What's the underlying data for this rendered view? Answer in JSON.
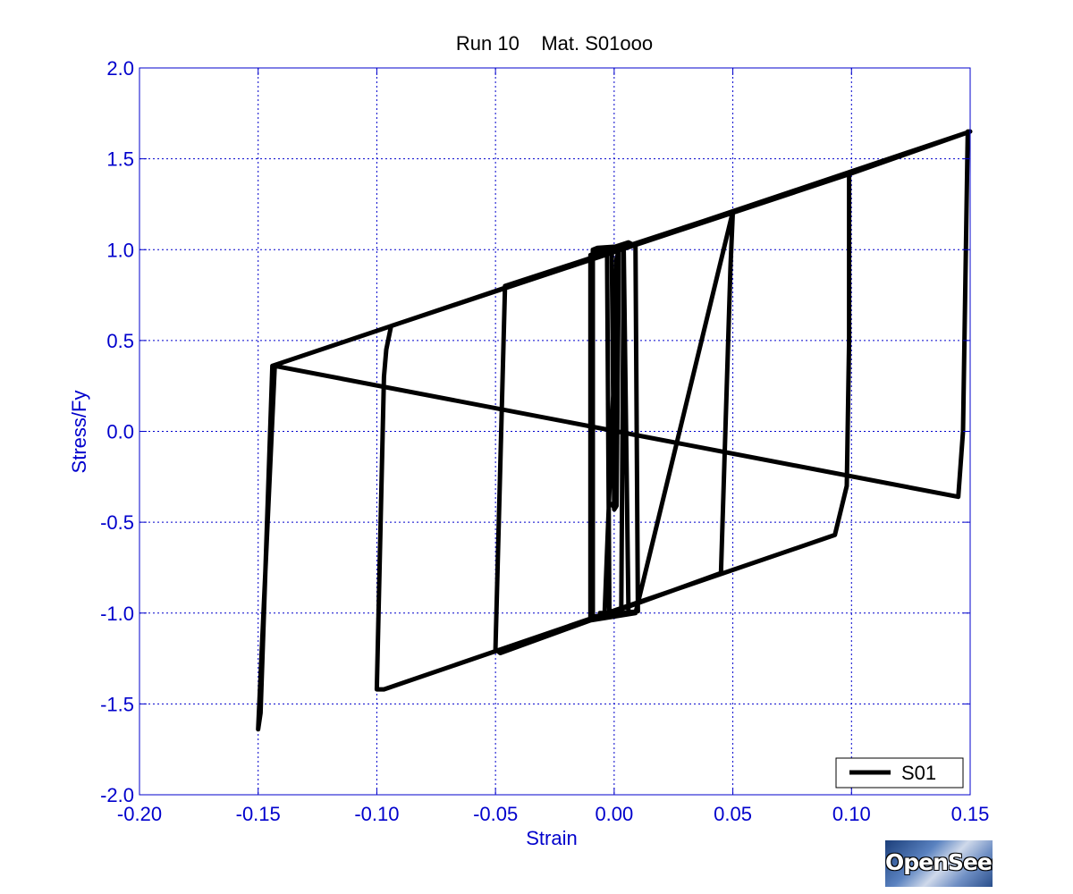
{
  "chart_data": {
    "type": "line",
    "title": "Run 10    Mat. S01ooo",
    "xlabel": "Strain",
    "ylabel": "Stress/Fy",
    "xlim": [
      -0.2,
      0.15
    ],
    "ylim": [
      -2.0,
      2.0
    ],
    "xticks": [
      -0.2,
      -0.15,
      -0.1,
      -0.05,
      0.0,
      0.05,
      0.1,
      0.15
    ],
    "xtick_labels": [
      "-0.20",
      "-0.15",
      "-0.10",
      "-0.05",
      "0.00",
      "0.05",
      "0.10",
      "0.15"
    ],
    "yticks": [
      2.0,
      1.5,
      1.0,
      0.5,
      0.0,
      -0.5,
      -1.0,
      -1.5,
      -2.0
    ],
    "ytick_labels": [
      "2.0",
      "1.5",
      "1.0",
      "0.5",
      "0.0",
      "-0.5",
      "-1.0",
      "-1.5",
      "-2.0"
    ],
    "grid": true,
    "legend_position": "bottom-right",
    "colors": {
      "axis": "#0000cc",
      "grid": "#0000cc",
      "line": "#000000",
      "title": "#000000"
    },
    "series": [
      {
        "name": "S01",
        "x": [
          -0.001,
          0.0,
          0.001,
          0.002,
          0.001,
          0.0,
          -0.001,
          -0.003,
          -0.002,
          0.003,
          0.004,
          0.002,
          -0.004,
          -0.006,
          -0.005,
          0.006,
          0.006,
          0.004,
          -0.007,
          -0.009,
          -0.009,
          0.01,
          0.009,
          0.006,
          -0.008,
          -0.01,
          -0.01,
          0.009,
          0.05,
          0.049,
          0.045,
          -0.048,
          -0.05,
          -0.046,
          0.05,
          0.1,
          0.099,
          0.099,
          0.098,
          0.093,
          -0.097,
          -0.1,
          -0.097,
          -0.096,
          -0.094,
          0.1,
          0.15,
          0.149,
          0.147,
          0.145,
          -0.143,
          -0.15,
          -0.149,
          -0.144,
          0.15
        ],
        "y": [
          -0.4,
          -0.42,
          0.95,
          1.0,
          -0.41,
          -0.43,
          0.98,
          1.0,
          -0.99,
          -0.99,
          1.0,
          1.02,
          -1.0,
          -1.0,
          -1.02,
          -1.0,
          -0.97,
          1.02,
          1.01,
          1.0,
          -1.02,
          -0.99,
          1.02,
          1.04,
          0.98,
          0.97,
          -1.04,
          -1.0,
          1.21,
          0.9,
          -0.78,
          -1.22,
          -1.2,
          0.8,
          1.21,
          1.42,
          1.42,
          0.5,
          -0.3,
          -0.57,
          -1.42,
          -1.42,
          0.3,
          0.45,
          0.58,
          1.42,
          1.65,
          1.65,
          0.0,
          -0.36,
          0.36,
          -1.64,
          -1.55,
          0.36,
          1.65
        ]
      }
    ]
  },
  "logo": {
    "text": "OpenSees"
  }
}
